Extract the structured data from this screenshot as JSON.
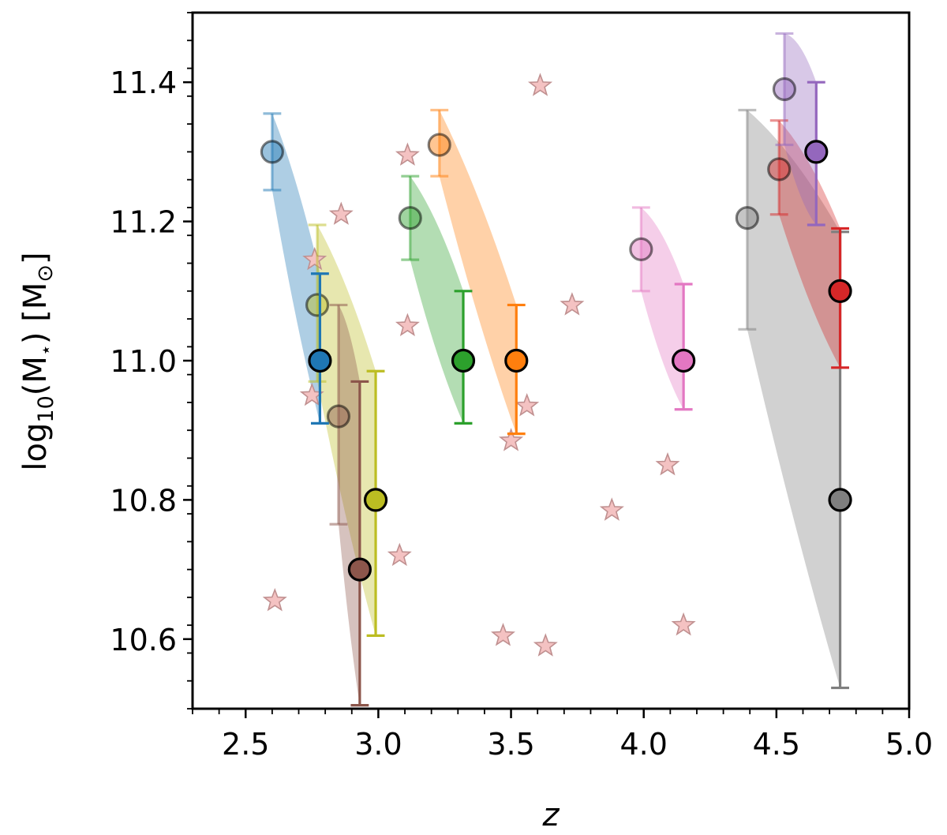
{
  "chart_data": {
    "type": "scatter",
    "xlabel": "z",
    "ylabel": "log",
    "ylabel_sub": "10",
    "ylabel_rest": "(M",
    "ylabel_star": "⋆",
    "ylabel_unit": ") [M",
    "ylabel_sun": "⊙",
    "ylabel_end": "]",
    "xlim": [
      2.3,
      5.0
    ],
    "ylim": [
      10.5,
      11.5
    ],
    "x_ticks": [
      2.5,
      3.0,
      3.5,
      4.0,
      4.5,
      5.0
    ],
    "x_tick_labels": [
      "2.5",
      "3.0",
      "3.5",
      "4.0",
      "4.5",
      "5.0"
    ],
    "y_ticks": [
      10.6,
      10.8,
      11.0,
      11.2,
      11.4
    ],
    "y_tick_labels": [
      "10.6",
      "10.8",
      "11.0",
      "11.2",
      "11.4"
    ],
    "grid": false,
    "tracks": [
      {
        "color": "#1f77b4",
        "start": {
          "z": 2.6,
          "logM": 11.3,
          "err": [
            11.245,
            11.355
          ]
        },
        "end": {
          "z": 2.78,
          "logM": 11.0,
          "err": [
            10.91,
            11.125
          ]
        }
      },
      {
        "color": "#bcbd22",
        "start": {
          "z": 2.77,
          "logM": 11.08,
          "err": [
            10.97,
            11.195
          ]
        },
        "end": {
          "z": 2.99,
          "logM": 10.8,
          "err": [
            10.605,
            10.985
          ]
        }
      },
      {
        "color": "#8c564b",
        "start": {
          "z": 2.85,
          "logM": 10.92,
          "err": [
            10.765,
            11.08
          ]
        },
        "end": {
          "z": 2.93,
          "logM": 10.7,
          "err": [
            10.505,
            10.97
          ]
        }
      },
      {
        "color": "#2ca02c",
        "start": {
          "z": 3.12,
          "logM": 11.205,
          "err": [
            11.145,
            11.265
          ]
        },
        "end": {
          "z": 3.32,
          "logM": 11.0,
          "err": [
            10.91,
            11.1
          ]
        }
      },
      {
        "color": "#ff7f0e",
        "start": {
          "z": 3.23,
          "logM": 11.31,
          "err": [
            11.265,
            11.36
          ]
        },
        "end": {
          "z": 3.52,
          "logM": 11.0,
          "err": [
            10.895,
            11.08
          ]
        }
      },
      {
        "color": "#e377c2",
        "start": {
          "z": 3.99,
          "logM": 11.16,
          "err": [
            11.1,
            11.22
          ]
        },
        "end": {
          "z": 4.15,
          "logM": 11.0,
          "err": [
            10.93,
            11.11
          ]
        }
      },
      {
        "color": "#7f7f7f",
        "start": {
          "z": 4.39,
          "logM": 11.205,
          "err": [
            11.045,
            11.36
          ]
        },
        "end": {
          "z": 4.74,
          "logM": 10.8,
          "err": [
            10.53,
            11.185
          ]
        }
      },
      {
        "color": "#d62728",
        "start": {
          "z": 4.51,
          "logM": 11.275,
          "err": [
            11.21,
            11.345
          ]
        },
        "end": {
          "z": 4.74,
          "logM": 11.1,
          "err": [
            10.99,
            11.19
          ]
        }
      },
      {
        "color": "#9467bd",
        "start": {
          "z": 4.53,
          "logM": 11.39,
          "err": [
            11.31,
            11.47
          ]
        },
        "end": {
          "z": 4.65,
          "logM": 11.3,
          "err": [
            11.195,
            11.4
          ]
        }
      }
    ],
    "stars": {
      "color": "#f4c2c2",
      "points": [
        {
          "z": 2.61,
          "logM": 10.655
        },
        {
          "z": 2.76,
          "logM": 11.145
        },
        {
          "z": 2.75,
          "logM": 10.95
        },
        {
          "z": 2.86,
          "logM": 11.21
        },
        {
          "z": 3.08,
          "logM": 10.72
        },
        {
          "z": 3.11,
          "logM": 11.295
        },
        {
          "z": 3.11,
          "logM": 11.05
        },
        {
          "z": 3.47,
          "logM": 10.605
        },
        {
          "z": 3.5,
          "logM": 10.885
        },
        {
          "z": 3.56,
          "logM": 10.935
        },
        {
          "z": 3.61,
          "logM": 11.395
        },
        {
          "z": 3.63,
          "logM": 10.59
        },
        {
          "z": 3.73,
          "logM": 11.08
        },
        {
          "z": 3.88,
          "logM": 10.785
        },
        {
          "z": 4.09,
          "logM": 10.85
        },
        {
          "z": 4.15,
          "logM": 10.62
        }
      ]
    }
  }
}
